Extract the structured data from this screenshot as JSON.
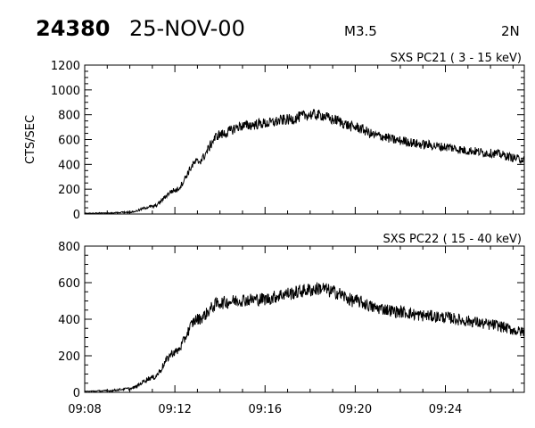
{
  "header": {
    "event_id": "24380",
    "date": "25-NOV-00",
    "flare_class": "M3.5",
    "location": "2N"
  },
  "chart_data": [
    {
      "type": "line",
      "title": "SXS PC21  (  3 - 15 keV)",
      "ylabel": "CTS/SEC",
      "xlabel": "",
      "xlim": [
        "09:08",
        "09:27:30"
      ],
      "ylim": [
        0,
        1200
      ],
      "yticks": [
        "0",
        "200",
        "400",
        "600",
        "800",
        "1000",
        "1200"
      ],
      "xticks": [],
      "grid": false,
      "series": [
        {
          "x": [
            "09:08",
            "09:09",
            "09:10",
            "09:11",
            "09:12",
            "09:13",
            "09:14",
            "09:15",
            "09:16",
            "09:17",
            "09:18",
            "09:18:30",
            "09:19",
            "09:20",
            "09:21",
            "09:22",
            "09:23",
            "09:24",
            "09:25",
            "09:26",
            "09:27:30"
          ],
          "values": [
            5,
            8,
            15,
            60,
            190,
            420,
            640,
            710,
            730,
            760,
            800,
            795,
            760,
            700,
            630,
            590,
            560,
            540,
            510,
            490,
            440
          ]
        }
      ]
    },
    {
      "type": "line",
      "title": "SXS PC22  ( 15 - 40 keV)",
      "ylabel": "",
      "xlabel": "",
      "xlim": [
        "09:08",
        "09:27:30"
      ],
      "ylim": [
        0,
        800
      ],
      "yticks": [
        "0",
        "200",
        "400",
        "600",
        "800"
      ],
      "xticks": [
        "09:08",
        "09:12",
        "09:16",
        "09:20",
        "09:24"
      ],
      "grid": false,
      "series": [
        {
          "x": [
            "09:08",
            "09:09",
            "09:10",
            "09:11",
            "09:12",
            "09:13",
            "09:14",
            "09:15",
            "09:16",
            "09:17",
            "09:18",
            "09:18:30",
            "09:19",
            "09:20",
            "09:21",
            "09:22",
            "09:23",
            "09:24",
            "09:25",
            "09:26",
            "09:27:30"
          ],
          "values": [
            5,
            8,
            20,
            80,
            220,
            400,
            490,
            505,
            510,
            540,
            560,
            570,
            550,
            500,
            460,
            440,
            420,
            410,
            390,
            370,
            330
          ]
        }
      ]
    }
  ]
}
